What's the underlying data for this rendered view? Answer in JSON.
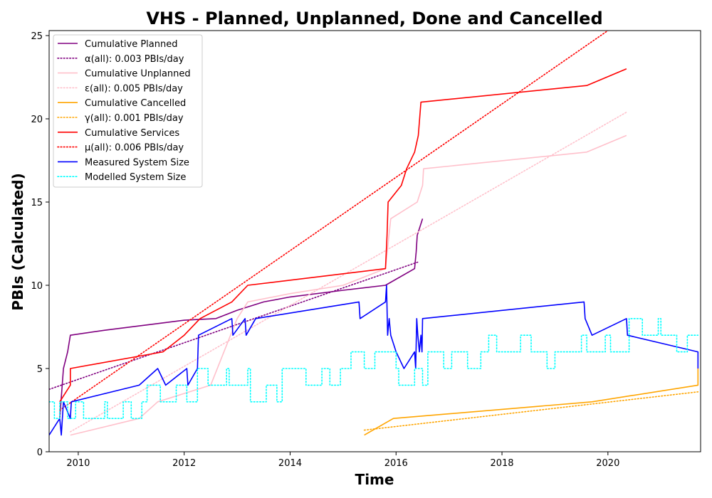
{
  "chart_data": {
    "type": "line",
    "title": "VHS - Planned, Unplanned, Done  and Cancelled",
    "xlabel": "Time",
    "ylabel": "PBIs (Calculated)",
    "xlim": [
      2009.45,
      2021.75
    ],
    "ylim": [
      0,
      25.3
    ],
    "x_ticks": [
      2010,
      2012,
      2014,
      2016,
      2018,
      2020
    ],
    "y_ticks": [
      0,
      5,
      10,
      15,
      20,
      25
    ],
    "grid": false,
    "legend_position": "top-left",
    "series": [
      {
        "name": "Cumulative Planned",
        "color": "#800080",
        "style": "solid",
        "x": [
          2009.65,
          2009.72,
          2009.8,
          2009.85,
          2010.5,
          2011.5,
          2012.0,
          2012.6,
          2013.0,
          2013.5,
          2014.0,
          2015.0,
          2015.8,
          2016.35,
          2016.38,
          2016.4,
          2016.5
        ],
        "y": [
          2.0,
          5.0,
          6.0,
          7.0,
          7.3,
          7.7,
          7.9,
          8.0,
          8.5,
          9.0,
          9.3,
          9.7,
          10.0,
          11.0,
          12.0,
          13.0,
          14.0
        ]
      },
      {
        "name": "α(all): 0.003 PBIs/day",
        "color": "#800080",
        "style": "dotted",
        "x": [
          2009.45,
          2016.42
        ],
        "y": [
          3.75,
          11.4
        ]
      },
      {
        "name": "Cumulative Unplanned",
        "color": "#ffc0cb",
        "style": "solid",
        "x": [
          2009.85,
          2011.15,
          2011.5,
          2012.5,
          2013.0,
          2013.2,
          2014.0,
          2015.0,
          2015.8,
          2015.9,
          2016.4,
          2016.5,
          2016.52,
          2019.6,
          2020.35
        ],
        "y": [
          1.0,
          2.0,
          3.0,
          4.0,
          8.0,
          9.0,
          9.5,
          10.0,
          11.0,
          14.0,
          15.0,
          16.0,
          17.0,
          18.0,
          19.0
        ]
      },
      {
        "name": "ε(all): 0.005 PBIs/day",
        "color": "#ffc0cb",
        "style": "dotted",
        "x": [
          2009.85,
          2020.35
        ],
        "y": [
          1.2,
          20.4
        ]
      },
      {
        "name": "Cumulative Cancelled",
        "color": "#ffa500",
        "style": "solid",
        "x": [
          2015.4,
          2015.95,
          2019.7,
          2021.7,
          2021.7
        ],
        "y": [
          1.0,
          2.0,
          3.0,
          4.0,
          5.0
        ]
      },
      {
        "name": "γ(all): 0.001 PBIs/day",
        "color": "#ffa500",
        "style": "dotted",
        "x": [
          2015.4,
          2021.7
        ],
        "y": [
          1.3,
          3.6
        ]
      },
      {
        "name": "Cumulative Services",
        "color": "#ff0000",
        "style": "solid",
        "x": [
          2009.65,
          2009.85,
          2009.85,
          2011.6,
          2012.0,
          2012.3,
          2012.9,
          2013.2,
          2015.8,
          2015.83,
          2015.85,
          2016.1,
          2016.2,
          2016.35,
          2016.42,
          2016.47,
          2019.6,
          2020.35
        ],
        "y": [
          3.0,
          4.0,
          5.0,
          6.0,
          7.0,
          8.0,
          9.0,
          10.0,
          11.0,
          13.0,
          15.0,
          16.0,
          17.0,
          18.0,
          19.0,
          21.0,
          22.0,
          23.0
        ]
      },
      {
        "name": "μ(all): 0.006 PBIs/day",
        "color": "#ff0000",
        "style": "dotted",
        "x": [
          2009.65,
          2020.0
        ],
        "y": [
          2.5,
          25.3
        ]
      },
      {
        "name": "Measured System Size",
        "color": "#0000ff",
        "style": "solid",
        "x": [
          2009.45,
          2009.65,
          2009.68,
          2009.72,
          2009.85,
          2009.87,
          2011.15,
          2011.5,
          2011.65,
          2012.05,
          2012.07,
          2012.25,
          2012.27,
          2012.9,
          2012.92,
          2013.15,
          2013.17,
          2013.35,
          2015.3,
          2015.32,
          2015.8,
          2015.82,
          2015.84,
          2015.87,
          2015.9,
          2016.0,
          2016.15,
          2016.35,
          2016.37,
          2016.39,
          2016.41,
          2016.44,
          2016.47,
          2016.49,
          2016.5,
          2019.55,
          2019.57,
          2019.7,
          2020.35,
          2020.37,
          2021.7,
          2021.7
        ],
        "y": [
          1.0,
          2.0,
          1.0,
          3.0,
          2.0,
          3.0,
          4.0,
          5.0,
          4.0,
          5.0,
          4.0,
          5.0,
          7.0,
          8.0,
          7.0,
          8.0,
          7.0,
          8.0,
          9.0,
          8.0,
          9.0,
          10.0,
          7.0,
          8.0,
          7.0,
          6.0,
          5.0,
          6.0,
          5.0,
          8.0,
          7.0,
          6.0,
          7.0,
          6.0,
          8.0,
          9.0,
          8.0,
          7.0,
          8.0,
          7.0,
          6.0,
          5.0
        ]
      },
      {
        "name": "Modelled System Size",
        "color": "#00ffff",
        "style": "dotted",
        "step": true,
        "x": [
          2009.45,
          2009.55,
          2009.65,
          2009.8,
          2009.95,
          2010.1,
          2010.5,
          2010.55,
          2010.85,
          2011.0,
          2011.2,
          2011.3,
          2011.55,
          2011.85,
          2012.05,
          2012.25,
          2012.45,
          2012.8,
          2012.85,
          2013.2,
          2013.25,
          2013.55,
          2013.75,
          2013.85,
          2014.3,
          2014.6,
          2014.75,
          2014.95,
          2015.15,
          2015.4,
          2015.6,
          2016.0,
          2016.05,
          2016.35,
          2016.5,
          2016.6,
          2016.9,
          2017.05,
          2017.35,
          2017.6,
          2017.75,
          2017.9,
          2018.35,
          2018.55,
          2018.85,
          2019.0,
          2019.5,
          2019.6,
          2019.95,
          2020.05,
          2020.4,
          2020.65,
          2020.95,
          2021.0,
          2021.3,
          2021.5,
          2021.7
        ],
        "y": [
          3,
          2,
          3,
          2,
          3,
          2,
          3,
          2,
          3,
          2,
          3,
          4,
          3,
          4,
          3,
          5,
          4,
          5,
          4,
          5,
          3,
          4,
          3,
          5,
          4,
          5,
          4,
          5,
          6,
          5,
          6,
          5,
          4,
          5,
          4,
          6,
          5,
          6,
          5,
          6,
          7,
          6,
          7,
          6,
          5,
          6,
          7,
          6,
          7,
          6,
          8,
          7,
          8,
          7,
          6,
          7,
          7
        ]
      }
    ]
  }
}
